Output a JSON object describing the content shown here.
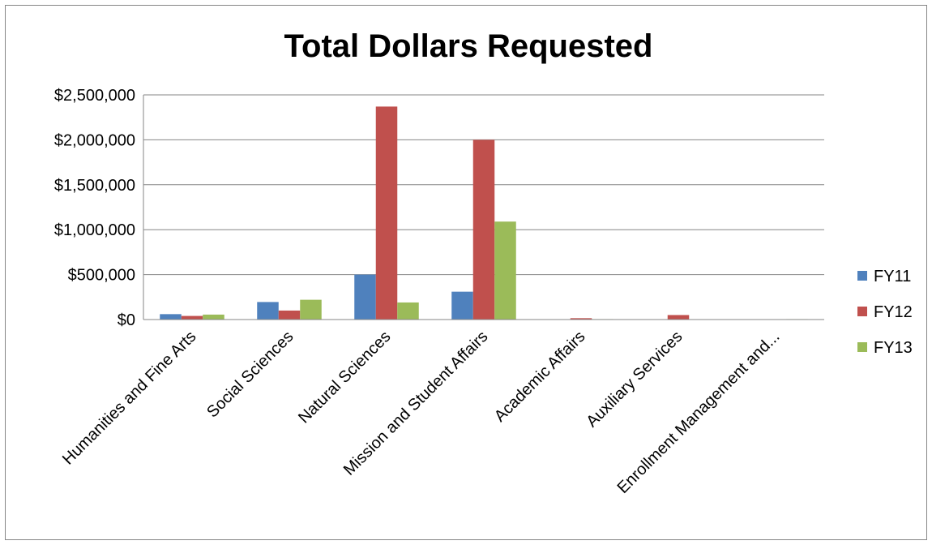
{
  "chart_data": {
    "type": "bar",
    "title": "Total Dollars Requested",
    "xlabel": "",
    "ylabel": "",
    "ylim": [
      0,
      2500000
    ],
    "yticks": [
      "$0",
      "$500,000",
      "$1,000,000",
      "$1,500,000",
      "$2,000,000",
      "$2,500,000"
    ],
    "ytick_values": [
      0,
      500000,
      1000000,
      1500000,
      2000000,
      2500000
    ],
    "grid": true,
    "legend_position": "right",
    "categories": [
      "Humanities and Fine Arts",
      "Social Sciences",
      "Natural Sciences",
      "Mission and Student Affairs",
      "Academic Affairs",
      "Auxiliary Services",
      "Enrollment Management and..."
    ],
    "series": [
      {
        "name": "FY11",
        "color": "#4F81BD",
        "values": [
          60000,
          195000,
          500000,
          310000,
          0,
          0,
          0
        ]
      },
      {
        "name": "FY12",
        "color": "#C0504D",
        "values": [
          40000,
          100000,
          2370000,
          2000000,
          15000,
          50000,
          0
        ]
      },
      {
        "name": "FY13",
        "color": "#9BBB59",
        "values": [
          55000,
          220000,
          190000,
          1090000,
          5000,
          0,
          5000
        ]
      }
    ]
  }
}
